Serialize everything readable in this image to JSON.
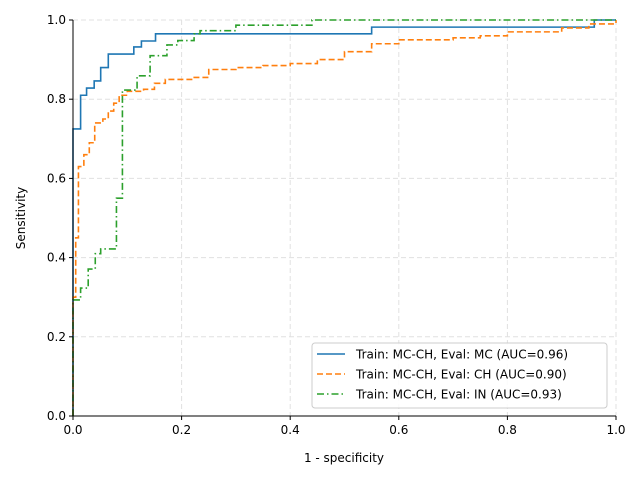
{
  "chart_data": {
    "type": "line",
    "title": "",
    "xlabel": "1 - specificity",
    "ylabel": "Sensitivity",
    "xlim": [
      0,
      1
    ],
    "ylim": [
      0,
      1
    ],
    "xticks": [
      "0.0",
      "0.2",
      "0.4",
      "0.6",
      "0.8",
      "1.0"
    ],
    "yticks": [
      "0.0",
      "0.2",
      "0.4",
      "0.6",
      "0.8",
      "1.0"
    ],
    "grid": true,
    "legend_position": "bottom-right",
    "series": [
      {
        "name": "Train: MC-CH, Eval: MC (AUC=0.96)",
        "color": "#1f77b4",
        "style": "solid",
        "step": true,
        "x": [
          0,
          0,
          0.014,
          0.025,
          0.039,
          0.051,
          0.065,
          0.112,
          0.126,
          0.152,
          0.55,
          0.96,
          1.0
        ],
        "y": [
          0,
          0.725,
          0.81,
          0.828,
          0.846,
          0.88,
          0.914,
          0.932,
          0.947,
          0.965,
          0.982,
          1.0,
          1.0
        ]
      },
      {
        "name": "Train: MC-CH, Eval: CH (AUC=0.90)",
        "color": "#ff7f0e",
        "style": "dashed",
        "step": true,
        "x": [
          0,
          0,
          0.005,
          0.01,
          0.02,
          0.03,
          0.04,
          0.055,
          0.065,
          0.075,
          0.085,
          0.1,
          0.13,
          0.15,
          0.17,
          0.22,
          0.25,
          0.3,
          0.35,
          0.4,
          0.45,
          0.5,
          0.55,
          0.6,
          0.7,
          0.75,
          0.8,
          0.9,
          0.95,
          1.0
        ],
        "y": [
          0,
          0.3,
          0.45,
          0.63,
          0.66,
          0.69,
          0.74,
          0.75,
          0.77,
          0.79,
          0.81,
          0.82,
          0.825,
          0.84,
          0.85,
          0.855,
          0.875,
          0.88,
          0.885,
          0.89,
          0.9,
          0.92,
          0.94,
          0.95,
          0.955,
          0.96,
          0.97,
          0.98,
          0.99,
          1.0
        ]
      },
      {
        "name": "Train: MC-CH, Eval: IN (AUC=0.93)",
        "color": "#2ca02c",
        "style": "dashdot",
        "step": true,
        "x": [
          0,
          0,
          0.014,
          0.028,
          0.041,
          0.051,
          0.08,
          0.091,
          0.118,
          0.142,
          0.173,
          0.193,
          0.223,
          0.234,
          0.3,
          0.44,
          1.0
        ],
        "y": [
          0,
          0.293,
          0.323,
          0.371,
          0.41,
          0.422,
          0.55,
          0.823,
          0.859,
          0.91,
          0.937,
          0.948,
          0.965,
          0.973,
          0.987,
          1.0,
          1.0
        ]
      }
    ]
  }
}
